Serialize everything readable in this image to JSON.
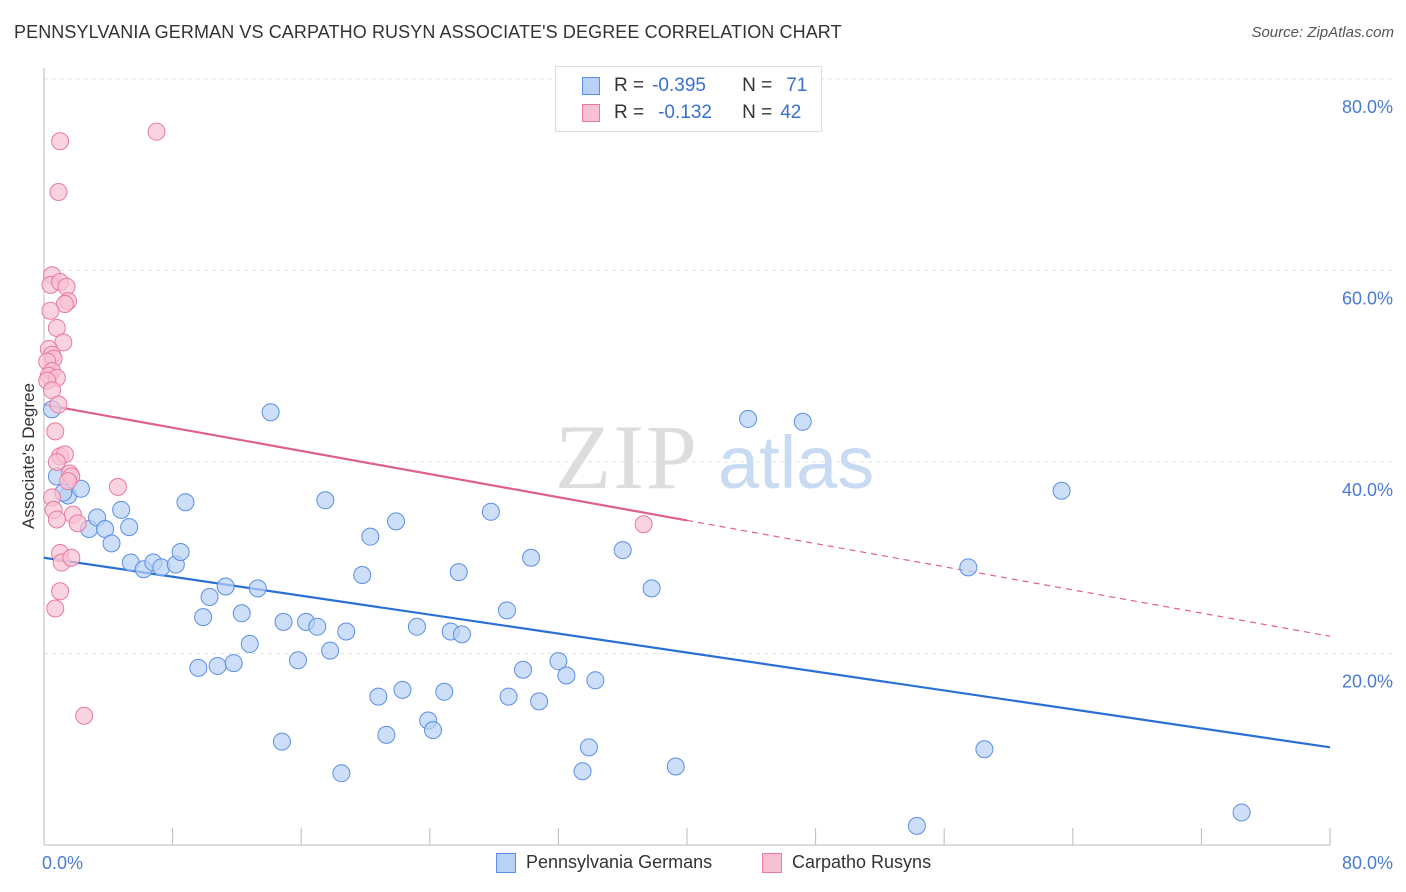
{
  "title": "PENNSYLVANIA GERMAN VS CARPATHO RUSYN ASSOCIATE'S DEGREE CORRELATION CHART",
  "source": "Source: ZipAtlas.com",
  "colors": {
    "blue": "#5b8ee6",
    "blue_fill": "#b8d1f5",
    "blue_line": "#2a6fd6",
    "pink": "#e87aa0",
    "pink_fill": "#f8c0d3",
    "pink_line": "#e0608c",
    "tick": "#4a7bd0",
    "grid": "#e3e3e3"
  },
  "legend": {
    "rows": [
      {
        "r_label": "R =",
        "r_value": "-0.395",
        "n_label": "N =",
        "n_value": "71"
      },
      {
        "r_label": "R =",
        "r_value": "-0.132",
        "n_label": "N =",
        "n_value": "42"
      }
    ]
  },
  "bottom_legend": {
    "series1": "Pennsylvania Germans",
    "series2": "Carpatho Rusyns"
  },
  "watermark": {
    "zip": "ZIP",
    "atlas": "atlas"
  },
  "chart_data": {
    "type": "scatter",
    "title": "PENNSYLVANIA GERMAN VS CARPATHO RUSYN ASSOCIATE'S DEGREE CORRELATION CHART",
    "ylabel": "Associate's Degree",
    "xlabel": "",
    "xlim": [
      0,
      80
    ],
    "ylim": [
      0,
      80
    ],
    "x_tick_labels": [
      "0.0%",
      "80.0%"
    ],
    "y_ticks": [
      20,
      40,
      60,
      80
    ],
    "y_tick_labels": [
      "20.0%",
      "40.0%",
      "60.0%",
      "80.0%"
    ],
    "series": [
      {
        "name": "Pennsylvania Germans",
        "r": -0.395,
        "n": 71,
        "trend": {
          "x": [
            0,
            80
          ],
          "y": [
            30.0,
            10.2
          ],
          "dashed_from": null
        },
        "points": [
          [
            0.5,
            45.5
          ],
          [
            0.8,
            38.5
          ],
          [
            1.5,
            36.5
          ],
          [
            2.3,
            37.2
          ],
          [
            1.2,
            36.8
          ],
          [
            2.8,
            33.0
          ],
          [
            3.3,
            34.2
          ],
          [
            4.8,
            35.0
          ],
          [
            5.3,
            33.2
          ],
          [
            3.8,
            33.0
          ],
          [
            4.2,
            31.5
          ],
          [
            5.4,
            29.5
          ],
          [
            6.2,
            28.8
          ],
          [
            6.8,
            29.5
          ],
          [
            7.3,
            29.0
          ],
          [
            8.2,
            29.3
          ],
          [
            8.5,
            30.6
          ],
          [
            8.8,
            35.8
          ],
          [
            9.6,
            18.5
          ],
          [
            9.9,
            23.8
          ],
          [
            10.3,
            25.9
          ],
          [
            10.8,
            18.7
          ],
          [
            11.3,
            27.0
          ],
          [
            11.8,
            19.0
          ],
          [
            12.3,
            24.2
          ],
          [
            12.8,
            21.0
          ],
          [
            13.3,
            26.8
          ],
          [
            14.1,
            45.2
          ],
          [
            14.8,
            10.8
          ],
          [
            14.9,
            23.3
          ],
          [
            15.8,
            19.3
          ],
          [
            16.3,
            23.3
          ],
          [
            17.0,
            22.8
          ],
          [
            17.5,
            36.0
          ],
          [
            17.8,
            20.3
          ],
          [
            18.5,
            7.5
          ],
          [
            18.8,
            22.3
          ],
          [
            19.8,
            28.2
          ],
          [
            20.3,
            32.2
          ],
          [
            20.8,
            15.5
          ],
          [
            21.3,
            11.5
          ],
          [
            21.9,
            33.8
          ],
          [
            22.3,
            16.2
          ],
          [
            23.2,
            22.8
          ],
          [
            23.9,
            13.0
          ],
          [
            24.2,
            12.0
          ],
          [
            24.9,
            16.0
          ],
          [
            25.3,
            22.3
          ],
          [
            26.0,
            22.0
          ],
          [
            25.8,
            28.5
          ],
          [
            27.8,
            34.8
          ],
          [
            28.8,
            24.5
          ],
          [
            28.9,
            15.5
          ],
          [
            29.8,
            18.3
          ],
          [
            30.3,
            30.0
          ],
          [
            30.8,
            15.0
          ],
          [
            32.0,
            19.2
          ],
          [
            32.5,
            17.7
          ],
          [
            33.5,
            7.7
          ],
          [
            33.9,
            10.2
          ],
          [
            34.3,
            17.2
          ],
          [
            36.0,
            30.8
          ],
          [
            37.8,
            26.8
          ],
          [
            39.3,
            8.2
          ],
          [
            43.8,
            44.5
          ],
          [
            47.2,
            44.2
          ],
          [
            54.3,
            2.0
          ],
          [
            57.5,
            29.0
          ],
          [
            58.5,
            10.0
          ],
          [
            63.3,
            37.0
          ],
          [
            74.5,
            3.4
          ]
        ]
      },
      {
        "name": "Carpatho Rusyns",
        "r": -0.132,
        "n": 42,
        "trend": {
          "x": [
            0,
            80
          ],
          "y": [
            46.0,
            21.8
          ],
          "dashed_from": 40
        },
        "points": [
          [
            7.0,
            74.5
          ],
          [
            1.0,
            73.5
          ],
          [
            0.9,
            68.2
          ],
          [
            0.5,
            59.5
          ],
          [
            0.4,
            58.5
          ],
          [
            1.0,
            58.8
          ],
          [
            1.4,
            58.3
          ],
          [
            1.5,
            56.8
          ],
          [
            1.3,
            56.5
          ],
          [
            0.4,
            55.8
          ],
          [
            0.8,
            54.0
          ],
          [
            1.2,
            52.5
          ],
          [
            0.3,
            51.8
          ],
          [
            0.5,
            51.2
          ],
          [
            0.6,
            50.8
          ],
          [
            0.2,
            50.5
          ],
          [
            0.5,
            49.5
          ],
          [
            0.3,
            49.0
          ],
          [
            0.8,
            48.8
          ],
          [
            0.2,
            48.5
          ],
          [
            0.5,
            47.5
          ],
          [
            0.9,
            46.0
          ],
          [
            0.7,
            43.2
          ],
          [
            1.0,
            40.6
          ],
          [
            1.3,
            40.8
          ],
          [
            0.8,
            40.0
          ],
          [
            1.6,
            38.8
          ],
          [
            1.7,
            38.5
          ],
          [
            1.5,
            38.0
          ],
          [
            4.6,
            37.4
          ],
          [
            0.5,
            36.3
          ],
          [
            0.6,
            35.0
          ],
          [
            1.8,
            34.5
          ],
          [
            0.8,
            34.0
          ],
          [
            2.1,
            33.6
          ],
          [
            1.0,
            30.5
          ],
          [
            1.1,
            29.5
          ],
          [
            1.7,
            30.0
          ],
          [
            1.0,
            26.5
          ],
          [
            0.7,
            24.7
          ],
          [
            2.5,
            13.5
          ],
          [
            37.3,
            33.5
          ]
        ]
      }
    ]
  }
}
